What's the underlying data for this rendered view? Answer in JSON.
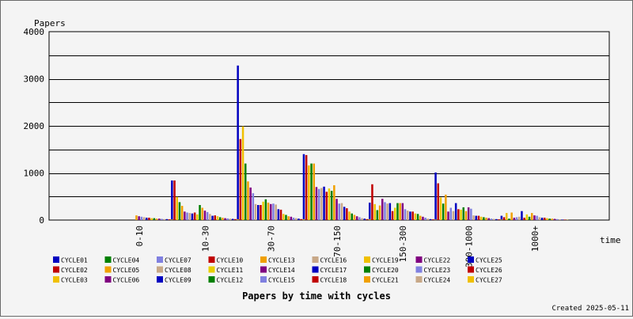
{
  "chart_data": {
    "type": "bar",
    "title": "Papers by time with cycles",
    "ylabel": "Papers",
    "xlabel": "time",
    "ylim": [
      0,
      4000
    ],
    "y_ticks": [
      0,
      1000,
      2000,
      3000,
      4000
    ],
    "grid": true,
    "legend_position": "bottom",
    "footer": "Created 2025-05-11",
    "categories": [
      "0-10",
      "10-30",
      "30-70",
      "70-150",
      "150-300",
      "300-1000",
      "1000+"
    ],
    "series": [
      {
        "name": "CYCLE01",
        "color": "#0000c0",
        "values": [
          0,
          840,
          3280,
          1400,
          370,
          1010,
          90
        ]
      },
      {
        "name": "CYCLE02",
        "color": "#c00000",
        "values": [
          0,
          840,
          1720,
          1380,
          760,
          780,
          60
        ]
      },
      {
        "name": "CYCLE03",
        "color": "#f0c000",
        "values": [
          0,
          490,
          1990,
          1160,
          340,
          480,
          150
        ]
      },
      {
        "name": "CYCLE04",
        "color": "#008000",
        "values": [
          0,
          380,
          1200,
          1200,
          210,
          350,
          30
        ]
      },
      {
        "name": "CYCLE05",
        "color": "#f0a000",
        "values": [
          0,
          300,
          820,
          1200,
          310,
          540,
          160
        ]
      },
      {
        "name": "CYCLE06",
        "color": "#800080",
        "values": [
          0,
          180,
          690,
          700,
          450,
          180,
          50
        ]
      },
      {
        "name": "CYCLE07",
        "color": "#8080e0",
        "values": [
          0,
          160,
          570,
          660,
          380,
          260,
          60
        ]
      },
      {
        "name": "CYCLE08",
        "color": "#c8a888",
        "values": [
          0,
          150,
          340,
          680,
          350,
          190,
          70
        ]
      },
      {
        "name": "CYCLE09",
        "color": "#0000c0",
        "values": [
          0,
          140,
          320,
          710,
          360,
          360,
          190
        ]
      },
      {
        "name": "CYCLE10",
        "color": "#c00000",
        "values": [
          0,
          160,
          320,
          600,
          190,
          230,
          50
        ]
      },
      {
        "name": "CYCLE11",
        "color": "#e8d000",
        "values": [
          0,
          120,
          390,
          670,
          260,
          220,
          120
        ]
      },
      {
        "name": "CYCLE12",
        "color": "#008000",
        "values": [
          0,
          320,
          440,
          620,
          360,
          270,
          70
        ]
      },
      {
        "name": "CYCLE13",
        "color": "#f0a000",
        "values": [
          100,
          260,
          370,
          740,
          360,
          190,
          150
        ]
      },
      {
        "name": "CYCLE14",
        "color": "#800080",
        "values": [
          80,
          200,
          340,
          450,
          360,
          270,
          100
        ]
      },
      {
        "name": "CYCLE15",
        "color": "#8080e0",
        "values": [
          70,
          170,
          350,
          350,
          230,
          240,
          90
        ]
      },
      {
        "name": "CYCLE16",
        "color": "#c8a888",
        "values": [
          60,
          130,
          330,
          360,
          200,
          100,
          60
        ]
      },
      {
        "name": "CYCLE17",
        "color": "#0000c0",
        "values": [
          50,
          90,
          230,
          280,
          180,
          90,
          50
        ]
      },
      {
        "name": "CYCLE18",
        "color": "#c00000",
        "values": [
          50,
          100,
          220,
          250,
          180,
          90,
          50
        ]
      },
      {
        "name": "CYCLE19",
        "color": "#f0c000",
        "values": [
          40,
          80,
          130,
          180,
          140,
          70,
          40
        ]
      },
      {
        "name": "CYCLE20",
        "color": "#008000",
        "values": [
          40,
          60,
          110,
          140,
          130,
          60,
          30
        ]
      },
      {
        "name": "CYCLE21",
        "color": "#f0a000",
        "values": [
          30,
          50,
          80,
          110,
          90,
          50,
          30
        ]
      },
      {
        "name": "CYCLE22",
        "color": "#800080",
        "values": [
          30,
          40,
          70,
          80,
          70,
          40,
          25
        ]
      },
      {
        "name": "CYCLE23",
        "color": "#8080e0",
        "values": [
          25,
          35,
          50,
          60,
          50,
          30,
          20
        ]
      },
      {
        "name": "CYCLE24",
        "color": "#c8a888",
        "values": [
          20,
          30,
          40,
          40,
          30,
          25,
          15
        ]
      },
      {
        "name": "CYCLE25",
        "color": "#0000c0",
        "values": [
          20,
          25,
          30,
          30,
          20,
          20,
          10
        ]
      },
      {
        "name": "CYCLE26",
        "color": "#c00000",
        "values": [
          15,
          20,
          20,
          20,
          15,
          15,
          10
        ]
      },
      {
        "name": "CYCLE27",
        "color": "#f0c000",
        "values": [
          10,
          15,
          15,
          15,
          10,
          10,
          5
        ]
      }
    ]
  }
}
